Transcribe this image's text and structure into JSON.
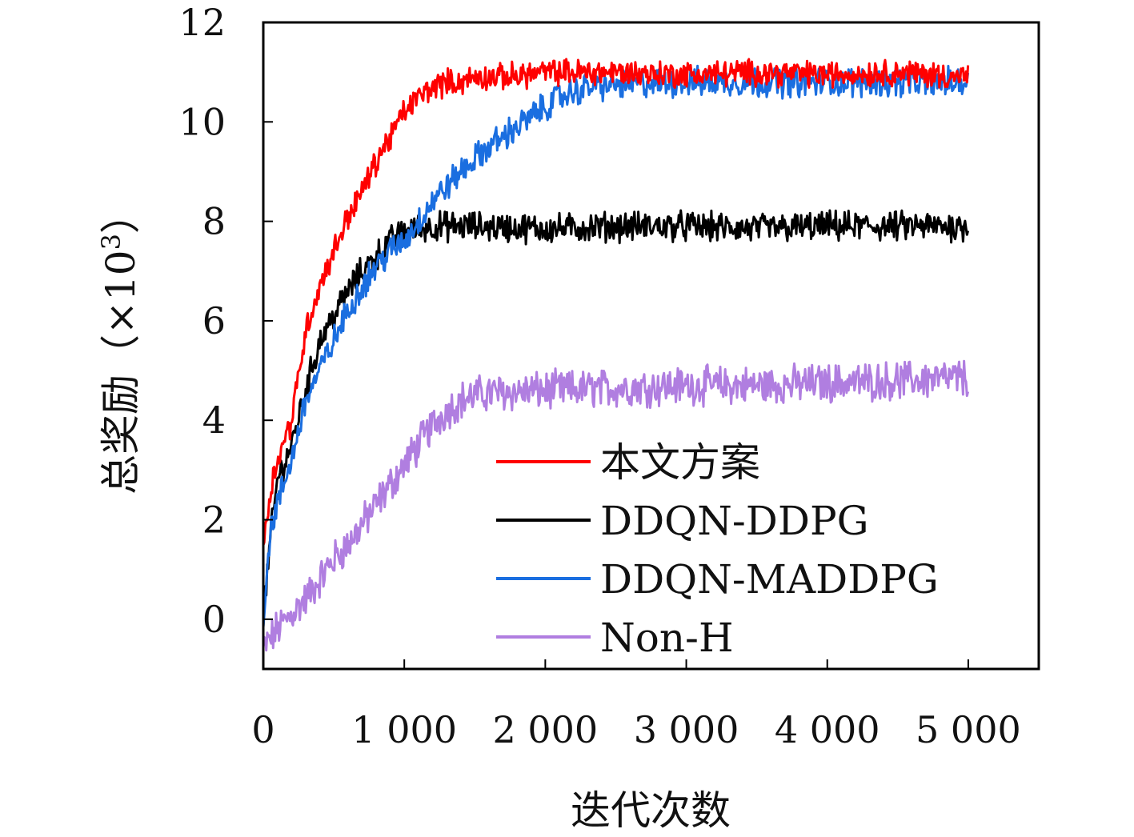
{
  "chart_data": {
    "type": "line",
    "xlabel": "迭代次数",
    "ylabel": "总奖励（×10",
    "ylabel_exponent": "3",
    "ylabel_close": "）",
    "xlim": [
      0,
      5500
    ],
    "ylim": [
      -1,
      12
    ],
    "xticks": [
      0,
      1000,
      2000,
      3000,
      4000,
      5000
    ],
    "xtick_labels": [
      "0",
      "1 000",
      "2 000",
      "3 000",
      "4 000",
      "5 000"
    ],
    "yticks": [
      0,
      2,
      4,
      6,
      8,
      10,
      12
    ],
    "ytick_labels": [
      "0",
      "2",
      "4",
      "6",
      "8",
      "10",
      "12"
    ],
    "legend_position": "lower-right",
    "grid": false,
    "series": [
      {
        "name": "本文方案",
        "color": "#ff0000",
        "noise": 0.22,
        "x": [
          0,
          50,
          100,
          200,
          300,
          400,
          500,
          600,
          700,
          800,
          900,
          1000,
          1100,
          1200,
          1300,
          1400,
          1500,
          1700,
          2000,
          2500,
          3000,
          3500,
          4000,
          4500,
          5000
        ],
        "y": [
          1.5,
          2.6,
          3.2,
          4.0,
          5.8,
          6.7,
          7.4,
          8.1,
          8.6,
          9.2,
          9.7,
          10.2,
          10.5,
          10.7,
          10.8,
          10.8,
          10.9,
          10.9,
          11.0,
          11.0,
          10.95,
          11.0,
          10.95,
          11.0,
          10.9
        ]
      },
      {
        "name": "DDQN-DDPG",
        "color": "#000000",
        "noise": 0.25,
        "x": [
          0,
          50,
          100,
          200,
          300,
          400,
          500,
          600,
          700,
          800,
          900,
          1000,
          1100,
          1200,
          1300,
          1500,
          2000,
          2500,
          3000,
          3500,
          4000,
          4500,
          5000
        ],
        "y": [
          0.0,
          1.6,
          2.8,
          3.5,
          4.6,
          5.6,
          6.1,
          6.6,
          7.0,
          7.3,
          7.6,
          7.8,
          7.85,
          7.9,
          7.9,
          7.9,
          7.85,
          7.9,
          7.9,
          7.85,
          7.9,
          7.9,
          7.9
        ]
      },
      {
        "name": "DDQN-MADDPG",
        "color": "#1a6ee0",
        "noise": 0.25,
        "x": [
          0,
          50,
          100,
          200,
          300,
          400,
          500,
          600,
          700,
          800,
          900,
          1000,
          1100,
          1200,
          1400,
          1600,
          1800,
          2000,
          2100,
          2300,
          2500,
          3000,
          3500,
          4000,
          4500,
          5000
        ],
        "y": [
          0.0,
          1.8,
          2.3,
          3.2,
          4.4,
          5.0,
          5.6,
          6.2,
          6.7,
          7.1,
          7.4,
          7.6,
          8.0,
          8.4,
          9.0,
          9.5,
          9.9,
          10.3,
          10.5,
          10.7,
          10.75,
          10.8,
          10.8,
          10.8,
          10.8,
          10.8
        ]
      },
      {
        "name": "Non-H",
        "color": "#b07ee0",
        "noise": 0.32,
        "x": [
          0,
          100,
          200,
          300,
          400,
          500,
          600,
          700,
          800,
          900,
          1000,
          1100,
          1200,
          1300,
          1400,
          1500,
          1600,
          2000,
          2500,
          3000,
          3500,
          4000,
          4500,
          5000
        ],
        "y": [
          -0.6,
          -0.2,
          0.1,
          0.4,
          0.8,
          1.2,
          1.5,
          1.9,
          2.3,
          2.7,
          3.1,
          3.5,
          3.9,
          4.2,
          4.4,
          4.5,
          4.55,
          4.6,
          4.65,
          4.7,
          4.7,
          4.75,
          4.8,
          4.85
        ]
      }
    ]
  }
}
